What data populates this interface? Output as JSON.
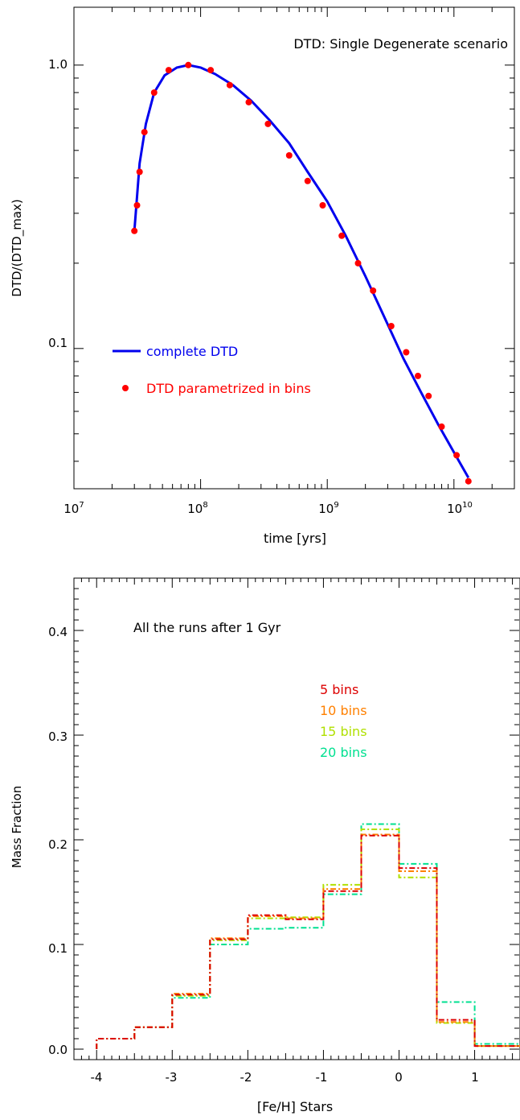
{
  "colors": {
    "axis": "#000000",
    "line": "#0000ee",
    "points": "#ff0000",
    "bins5": "#dd0000",
    "bins10": "#ff8000",
    "bins15": "#b0e000",
    "bins20": "#00e090"
  },
  "chart_data": [
    {
      "type": "line",
      "title": "DTD: Single Degenerate scenario",
      "xlabel": "time [yrs]",
      "ylabel": "DTD/(DTD_max)",
      "xscale": "log",
      "yscale": "log",
      "xlim": [
        10000000.0,
        30000000000.0
      ],
      "ylim": [
        0.032,
        1.6
      ],
      "grid": false,
      "legend_position": "lower-left",
      "x_tick_labels": [
        {
          "base": "10",
          "exp": "7"
        },
        {
          "base": "10",
          "exp": "8"
        },
        {
          "base": "10",
          "exp": "9"
        },
        {
          "base": "10",
          "exp": "10"
        }
      ],
      "y_tick_labels": [
        "1.0",
        "0.1"
      ],
      "series": [
        {
          "name": "complete DTD",
          "style": "line",
          "x": [
            30000000.0,
            33000000.0,
            37000000.0,
            43000000.0,
            52000000.0,
            65000000.0,
            80000000.0,
            100000000.0,
            130000000.0,
            180000000.0,
            250000000.0,
            350000000.0,
            500000000.0,
            700000000.0,
            1000000000.0,
            1400000000.0,
            2000000000.0,
            2800000000.0,
            4000000000.0,
            5500000000.0,
            7500000000.0,
            10000000000.0,
            13000000000.0
          ],
          "y": [
            0.26,
            0.45,
            0.62,
            0.8,
            0.92,
            0.98,
            1.0,
            0.98,
            0.93,
            0.85,
            0.75,
            0.64,
            0.53,
            0.42,
            0.33,
            0.25,
            0.18,
            0.13,
            0.092,
            0.07,
            0.054,
            0.043,
            0.035
          ]
        },
        {
          "name": "DTD parametrized in bins",
          "style": "points",
          "x": [
            30000000.0,
            31500000.0,
            33000000.0,
            36000000.0,
            43000000.0,
            56000000.0,
            80000000.0,
            120000000.0,
            170000000.0,
            240000000.0,
            340000000.0,
            500000000.0,
            700000000.0,
            920000000.0,
            1300000000.0,
            1750000000.0,
            2300000000.0,
            3200000000.0,
            4200000000.0,
            5200000000.0,
            6300000000.0,
            8000000000.0,
            10500000000.0,
            13000000000.0
          ],
          "y": [
            0.26,
            0.32,
            0.42,
            0.58,
            0.8,
            0.96,
            1.0,
            0.96,
            0.85,
            0.74,
            0.62,
            0.48,
            0.39,
            0.32,
            0.25,
            0.2,
            0.16,
            0.12,
            0.097,
            0.08,
            0.068,
            0.053,
            0.042,
            0.034
          ]
        }
      ]
    },
    {
      "type": "line",
      "title": "All the runs after 1 Gyr",
      "xlabel": "[Fe/H] Stars",
      "ylabel": "Mass Fraction",
      "xlim": [
        -4.3,
        1.6
      ],
      "ylim": [
        -0.01,
        0.45
      ],
      "grid": false,
      "legend_position": "upper-right",
      "x_tick_labels": [
        "-4",
        "-3",
        "-2",
        "-1",
        "0",
        "1"
      ],
      "y_tick_labels": [
        "0.0",
        "0.1",
        "0.2",
        "0.3",
        "0.4"
      ],
      "bin_edges": [
        -4.0,
        -3.5,
        -3.0,
        -2.5,
        -2.0,
        -1.5,
        -1.0,
        -0.5,
        0.0,
        0.5,
        1.0,
        1.6
      ],
      "series": [
        {
          "name": "5 bins",
          "values": [
            0.01,
            0.021,
            0.052,
            0.105,
            0.128,
            0.124,
            0.151,
            0.204,
            0.173,
            0.028,
            0.003
          ]
        },
        {
          "name": "10 bins",
          "values": [
            0.01,
            0.021,
            0.053,
            0.106,
            0.127,
            0.125,
            0.153,
            0.205,
            0.17,
            0.026,
            0.003
          ]
        },
        {
          "name": "15 bins",
          "values": [
            0.01,
            0.021,
            0.051,
            0.104,
            0.125,
            0.126,
            0.157,
            0.21,
            0.164,
            0.025,
            0.003
          ]
        },
        {
          "name": "20 bins",
          "values": [
            0.01,
            0.021,
            0.049,
            0.1,
            0.115,
            0.116,
            0.148,
            0.215,
            0.177,
            0.045,
            0.005
          ]
        }
      ]
    }
  ]
}
